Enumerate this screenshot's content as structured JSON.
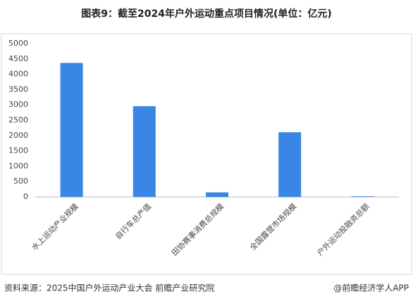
{
  "chart_data": {
    "type": "bar",
    "title": "图表9：截至2024年户外运动重点项目情况(单位：亿元)",
    "categories": [
      "水上运动产业规模",
      "自行车总产值",
      "田协赛事消费总规模",
      "全国露营市场规模",
      "户外运动投融资总额"
    ],
    "values": [
      4370,
      2960,
      150,
      2110,
      20
    ],
    "color": "#3a86e4",
    "ylim": [
      0,
      5000
    ],
    "yticks": [
      0,
      500,
      1000,
      1500,
      2000,
      2500,
      3000,
      3500,
      4000,
      4500,
      5000
    ],
    "grid": false,
    "source": "资料来源：2025中国户外运动产业大会 前瞻产业研究院",
    "credit": "@前瞻经济学人APP"
  }
}
